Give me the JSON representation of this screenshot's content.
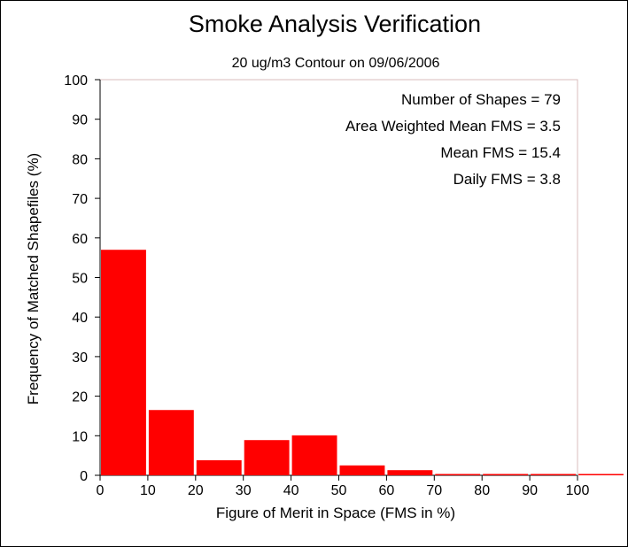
{
  "chart_data": {
    "type": "bar",
    "title": "Smoke Analysis Verification",
    "subtitle": "20 ug/m3 Contour on 09/06/2006",
    "xlabel": "Figure of Merit in Space (FMS in %)",
    "ylabel": "Frequency of Matched Shapefiles (%)",
    "xlim": [
      0,
      100
    ],
    "ylim": [
      0,
      100
    ],
    "x_ticks": [
      "0",
      "10",
      "20",
      "30",
      "40",
      "50",
      "60",
      "70",
      "80",
      "90",
      "100"
    ],
    "y_ticks": [
      "0",
      "10",
      "20",
      "30",
      "40",
      "50",
      "60",
      "70",
      "80",
      "90",
      "100"
    ],
    "bins": [
      [
        0,
        10
      ],
      [
        10,
        20
      ],
      [
        20,
        30
      ],
      [
        30,
        40
      ],
      [
        40,
        50
      ],
      [
        50,
        60
      ],
      [
        60,
        70
      ],
      [
        70,
        80
      ],
      [
        80,
        90
      ],
      [
        90,
        100
      ],
      [
        100,
        110
      ]
    ],
    "values": [
      57.0,
      16.5,
      3.8,
      8.9,
      10.1,
      2.5,
      1.3,
      0.0,
      0.0,
      0.0,
      0.0
    ],
    "bar_color": "#ff0000",
    "grid": false,
    "annotations": [
      "Number of Shapes = 79",
      "Area Weighted Mean FMS = 3.5",
      "Mean FMS = 15.4",
      "Daily FMS = 3.8"
    ]
  }
}
